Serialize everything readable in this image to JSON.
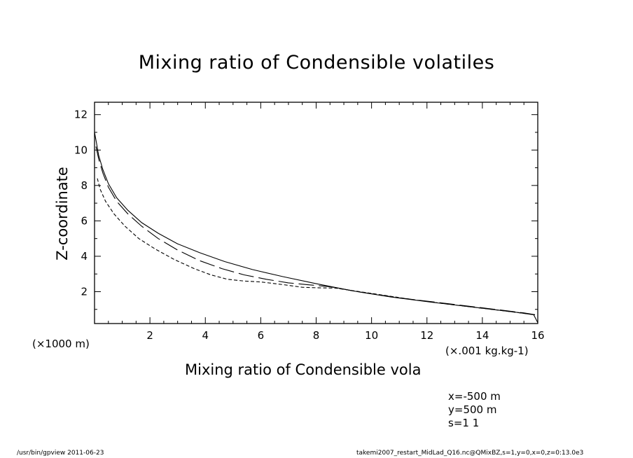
{
  "chart_data": {
    "type": "line",
    "title": "Mixing ratio of Condensible volatiles",
    "xlabel": "Mixing ratio of Condensible vola",
    "ylabel": "Z-coordinate",
    "x_unit": "(×.001 kg.kg-1)",
    "y_unit": "(×1000 m)",
    "xlim": [
      0,
      16
    ],
    "ylim": [
      0.2,
      12.7
    ],
    "xticks": [
      2,
      4,
      6,
      8,
      10,
      12,
      14,
      16
    ],
    "yticks": [
      2,
      4,
      6,
      8,
      10,
      12
    ],
    "grid": false,
    "series": [
      {
        "style": "solid",
        "x": [
          0.0,
          0.07,
          0.15,
          0.3,
          0.5,
          0.8,
          1.2,
          1.7,
          2.3,
          3.0,
          3.8,
          4.7,
          5.7,
          6.8,
          8.0,
          9.3,
          10.7,
          12.2,
          13.8,
          15.3,
          15.85,
          16.0
        ],
        "y": [
          11.0,
          10.4,
          9.7,
          8.9,
          8.1,
          7.3,
          6.6,
          5.9,
          5.3,
          4.7,
          4.2,
          3.7,
          3.25,
          2.85,
          2.45,
          2.05,
          1.7,
          1.4,
          1.1,
          0.82,
          0.7,
          0.25
        ]
      },
      {
        "style": "long-dash",
        "x": [
          0.05,
          0.15,
          0.3,
          0.5,
          0.8,
          1.2,
          1.7,
          2.3,
          3.0,
          3.8,
          4.6,
          5.4,
          6.2,
          7.0,
          7.8,
          8.5,
          9.5,
          11.0,
          12.6,
          14.2,
          15.5,
          15.9
        ],
        "y": [
          10.2,
          9.5,
          8.7,
          7.9,
          7.1,
          6.4,
          5.7,
          5.0,
          4.35,
          3.75,
          3.3,
          2.95,
          2.7,
          2.5,
          2.38,
          2.28,
          2.0,
          1.65,
          1.35,
          1.05,
          0.8,
          0.7
        ]
      },
      {
        "style": "short-dash",
        "x": [
          0.1,
          0.2,
          0.4,
          0.7,
          1.1,
          1.6,
          2.2,
          2.9,
          3.6,
          4.2,
          4.8,
          5.4,
          6.0,
          6.8,
          7.5,
          8.0,
          8.7,
          10.0,
          11.5,
          13.0,
          14.6,
          15.9
        ],
        "y": [
          8.4,
          7.8,
          7.1,
          6.4,
          5.7,
          5.0,
          4.4,
          3.8,
          3.3,
          2.95,
          2.7,
          2.6,
          2.55,
          2.4,
          2.25,
          2.22,
          2.2,
          1.9,
          1.55,
          1.25,
          0.95,
          0.7
        ]
      }
    ]
  },
  "info": {
    "x_line": "x=-500 m",
    "y_line": "y=500 m",
    "s_line": "s=1 1"
  },
  "footer": {
    "left": "/usr/bin/gpview  2011-06-23",
    "right": "takemi2007_restart_MidLad_Q16.nc@QMixBZ,s=1,y=0,x=0,z=0:13.0e3"
  }
}
